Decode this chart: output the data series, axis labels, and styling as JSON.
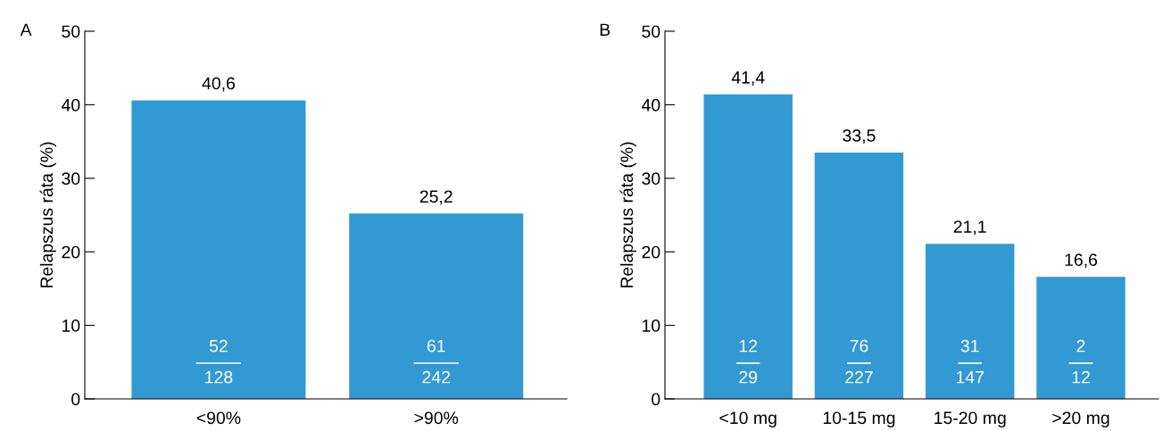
{
  "chart_data": [
    {
      "type": "bar",
      "title": "A",
      "ylabel": "Relapszus ráta (%)",
      "categories": [
        "<90%",
        ">90%"
      ],
      "values": [
        40.6,
        25.2
      ],
      "value_labels": [
        "40,6",
        "25,2"
      ],
      "color": "#3399d3",
      "ylim": [
        0,
        50
      ],
      "yticks": [
        0,
        10,
        20,
        30,
        40,
        50
      ],
      "grid": false,
      "legend": false,
      "annotations": [
        "52",
        "128",
        "61",
        "242"
      ]
    },
    {
      "type": "bar",
      "title": "B",
      "ylabel": "Relapszus ráta (%)",
      "categories": [
        "<10 mg",
        "10-15 mg",
        "15-20 mg",
        ">20 mg"
      ],
      "values": [
        41.4,
        33.5,
        21.1,
        16.6
      ],
      "value_labels": [
        "41,4",
        "33,5",
        "21,1",
        "16,6"
      ],
      "color": "#3399d3",
      "ylim": [
        0,
        50
      ],
      "yticks": [
        0,
        10,
        20,
        30,
        40,
        50
      ],
      "grid": false,
      "legend": false,
      "annotations": [
        "12",
        "29",
        "76",
        "227",
        "31",
        "147",
        "2",
        "12"
      ]
    }
  ]
}
